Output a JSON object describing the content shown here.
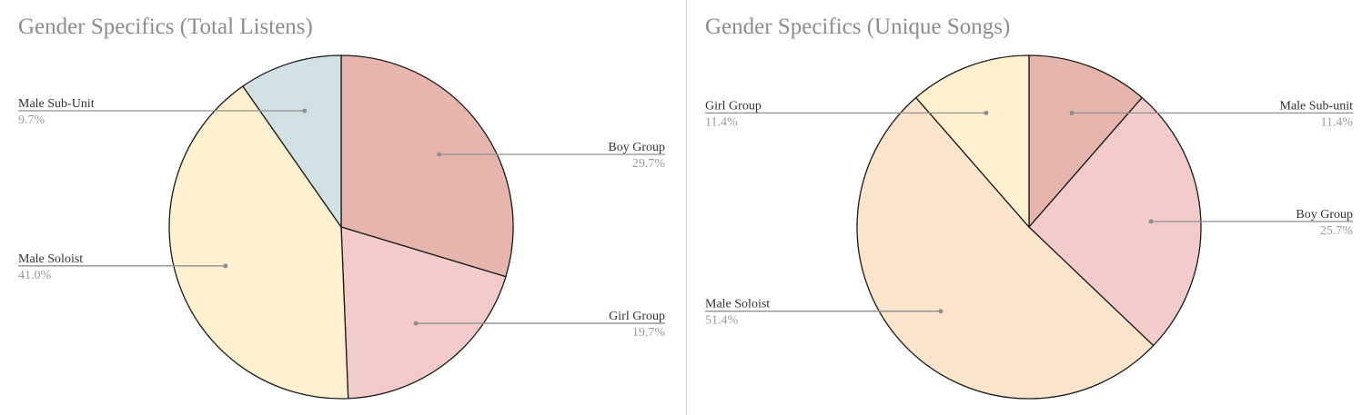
{
  "chart_data": [
    {
      "type": "pie",
      "title": "Gender Specifics (Total Listens)",
      "slices": [
        {
          "label": "Boy Group",
          "value": 29.7,
          "display": "29.7%",
          "color": "#e6b5ad"
        },
        {
          "label": "Girl Group",
          "value": 19.7,
          "display": "19.7%",
          "color": "#f3cbcb"
        },
        {
          "label": "Male Soloist",
          "value": 41.0,
          "display": "41.0%",
          "color": "#fff1cf"
        },
        {
          "label": "Male Sub-Unit",
          "value": 9.7,
          "display": "9.7%",
          "color": "#d2e1e3"
        }
      ]
    },
    {
      "type": "pie",
      "title": "Gender Specifics (Unique Songs)",
      "slices": [
        {
          "label": "Male Sub-unit",
          "value": 11.4,
          "display": "11.4%",
          "color": "#e6b5ad"
        },
        {
          "label": "Boy Group",
          "value": 25.7,
          "display": "25.7%",
          "color": "#f3cbcb"
        },
        {
          "label": "Male Soloist",
          "value": 51.4,
          "display": "51.4%",
          "color": "#fbe4cc"
        },
        {
          "label": "Girl Group",
          "value": 11.4,
          "display": "11.4%",
          "color": "#fff1cf"
        }
      ]
    }
  ]
}
